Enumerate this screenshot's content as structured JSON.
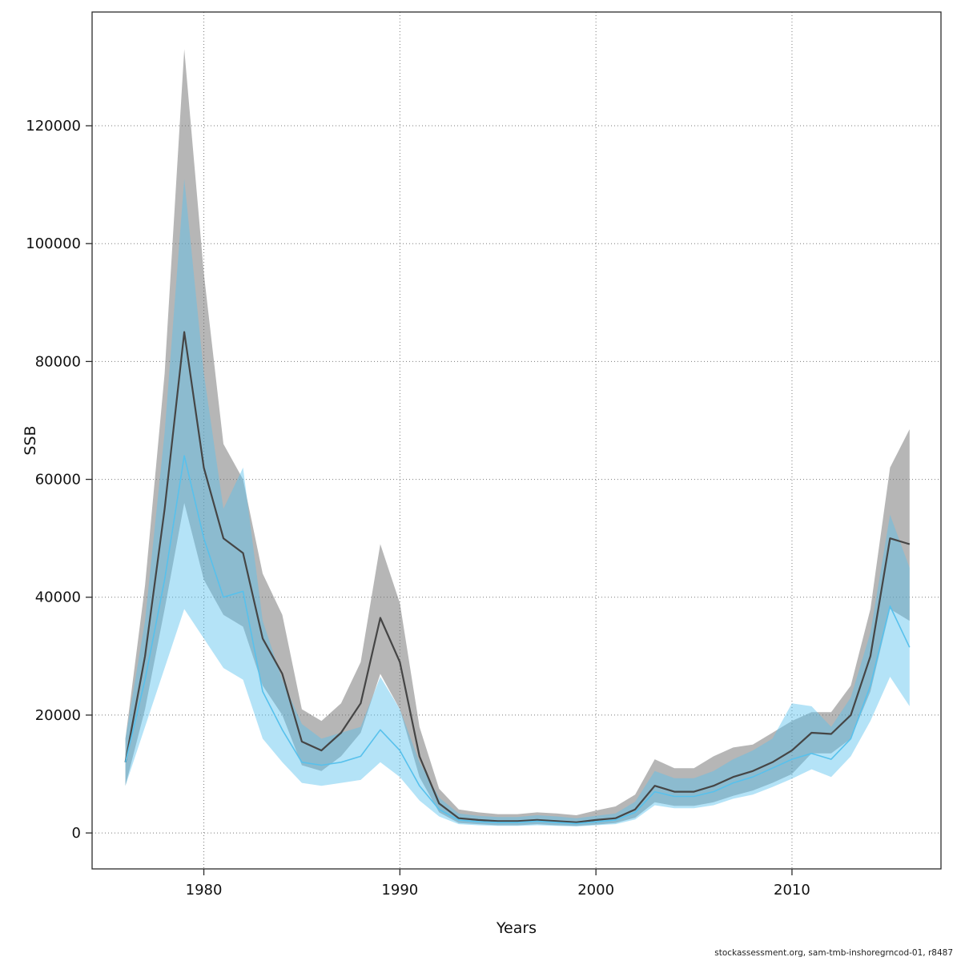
{
  "page": {
    "background": "#ffffff"
  },
  "chart_data": {
    "type": "area",
    "title": "",
    "xlabel": "Years",
    "ylabel": "SSB",
    "footer": "stockassessment.org, sam-tmb-inshoregrncod-01, r8487",
    "grid": "dotted",
    "legend": "none",
    "x_ticks": [
      1980,
      1990,
      2000,
      2010
    ],
    "y_ticks": [
      0,
      20000,
      40000,
      60000,
      80000,
      100000,
      120000
    ],
    "xlim": [
      1974.3,
      2017.6
    ],
    "ylim": [
      -6100,
      139300
    ],
    "years": [
      1976,
      1977,
      1978,
      1979,
      1980,
      1981,
      1982,
      1983,
      1984,
      1985,
      1986,
      1987,
      1988,
      1989,
      1990,
      1991,
      1992,
      1993,
      1994,
      1995,
      1996,
      1997,
      1998,
      1999,
      2000,
      2001,
      2002,
      2003,
      2004,
      2005,
      2006,
      2007,
      2008,
      2009,
      2010,
      2011,
      2012,
      2013,
      2014,
      2015,
      2016
    ],
    "series": [
      {
        "id": "gray",
        "line_color": "#454545",
        "band_color": "rgba(110,110,110,0.50)",
        "line_width": 2.2,
        "mean": [
          12000,
          30000,
          55000,
          85000,
          62000,
          50000,
          47500,
          33000,
          27000,
          15500,
          14000,
          17000,
          22000,
          36500,
          29000,
          13000,
          5000,
          2500,
          2200,
          2000,
          2000,
          2200,
          2000,
          1800,
          2200,
          2500,
          4000,
          8000,
          7000,
          7000,
          8000,
          9500,
          10500,
          12000,
          14000,
          17000,
          16800,
          20000,
          30000,
          50000,
          49000
        ],
        "upper": [
          16000,
          42000,
          78000,
          133000,
          95000,
          66000,
          60000,
          44000,
          37000,
          21000,
          19000,
          22000,
          29000,
          49000,
          39000,
          18000,
          7500,
          4000,
          3500,
          3200,
          3200,
          3500,
          3300,
          3000,
          3800,
          4500,
          6500,
          12500,
          11000,
          11000,
          13000,
          14500,
          15000,
          17000,
          19000,
          20500,
          20500,
          25000,
          38000,
          62000,
          68500
        ],
        "lower": [
          8000,
          21000,
          38000,
          56000,
          43000,
          37000,
          35000,
          25000,
          20000,
          11500,
          10500,
          13000,
          17000,
          27000,
          21000,
          9500,
          3500,
          1700,
          1500,
          1300,
          1300,
          1500,
          1300,
          1200,
          1400,
          1700,
          2600,
          5200,
          4600,
          4600,
          5200,
          6300,
          7200,
          8500,
          10000,
          13500,
          13500,
          16000,
          24000,
          38000,
          36000
        ]
      },
      {
        "id": "blue",
        "line_color": "#58c1ec",
        "band_color": "rgba(88,193,238,0.45)",
        "line_width": 1.6,
        "mean": [
          12000,
          26000,
          43000,
          64000,
          50000,
          40000,
          41000,
          24000,
          17500,
          12000,
          11500,
          12000,
          13000,
          17500,
          14000,
          8000,
          4000,
          2200,
          1900,
          1800,
          1800,
          2000,
          1800,
          1600,
          1900,
          2200,
          3500,
          7000,
          6200,
          6200,
          7000,
          8500,
          9500,
          11000,
          12500,
          13500,
          12500,
          16000,
          25000,
          38500,
          31500
        ],
        "upper": [
          16000,
          36000,
          68000,
          111000,
          78000,
          55000,
          62000,
          36000,
          26000,
          18500,
          16000,
          17000,
          18000,
          26500,
          21000,
          12000,
          6000,
          3300,
          2900,
          2700,
          2700,
          3000,
          2800,
          2500,
          2900,
          3300,
          5300,
          10500,
          9300,
          9300,
          10500,
          12500,
          14000,
          16000,
          22000,
          21500,
          18000,
          23000,
          34000,
          54000,
          45000
        ],
        "lower": [
          8000,
          18000,
          28000,
          38000,
          33000,
          28000,
          26000,
          16000,
          12000,
          8500,
          8000,
          8500,
          9000,
          12000,
          9500,
          5500,
          2800,
          1500,
          1300,
          1200,
          1200,
          1300,
          1200,
          1100,
          1300,
          1500,
          2300,
          4700,
          4200,
          4200,
          4700,
          5800,
          6500,
          7800,
          9200,
          10800,
          9500,
          13000,
          19000,
          26500,
          21500
        ]
      }
    ]
  }
}
